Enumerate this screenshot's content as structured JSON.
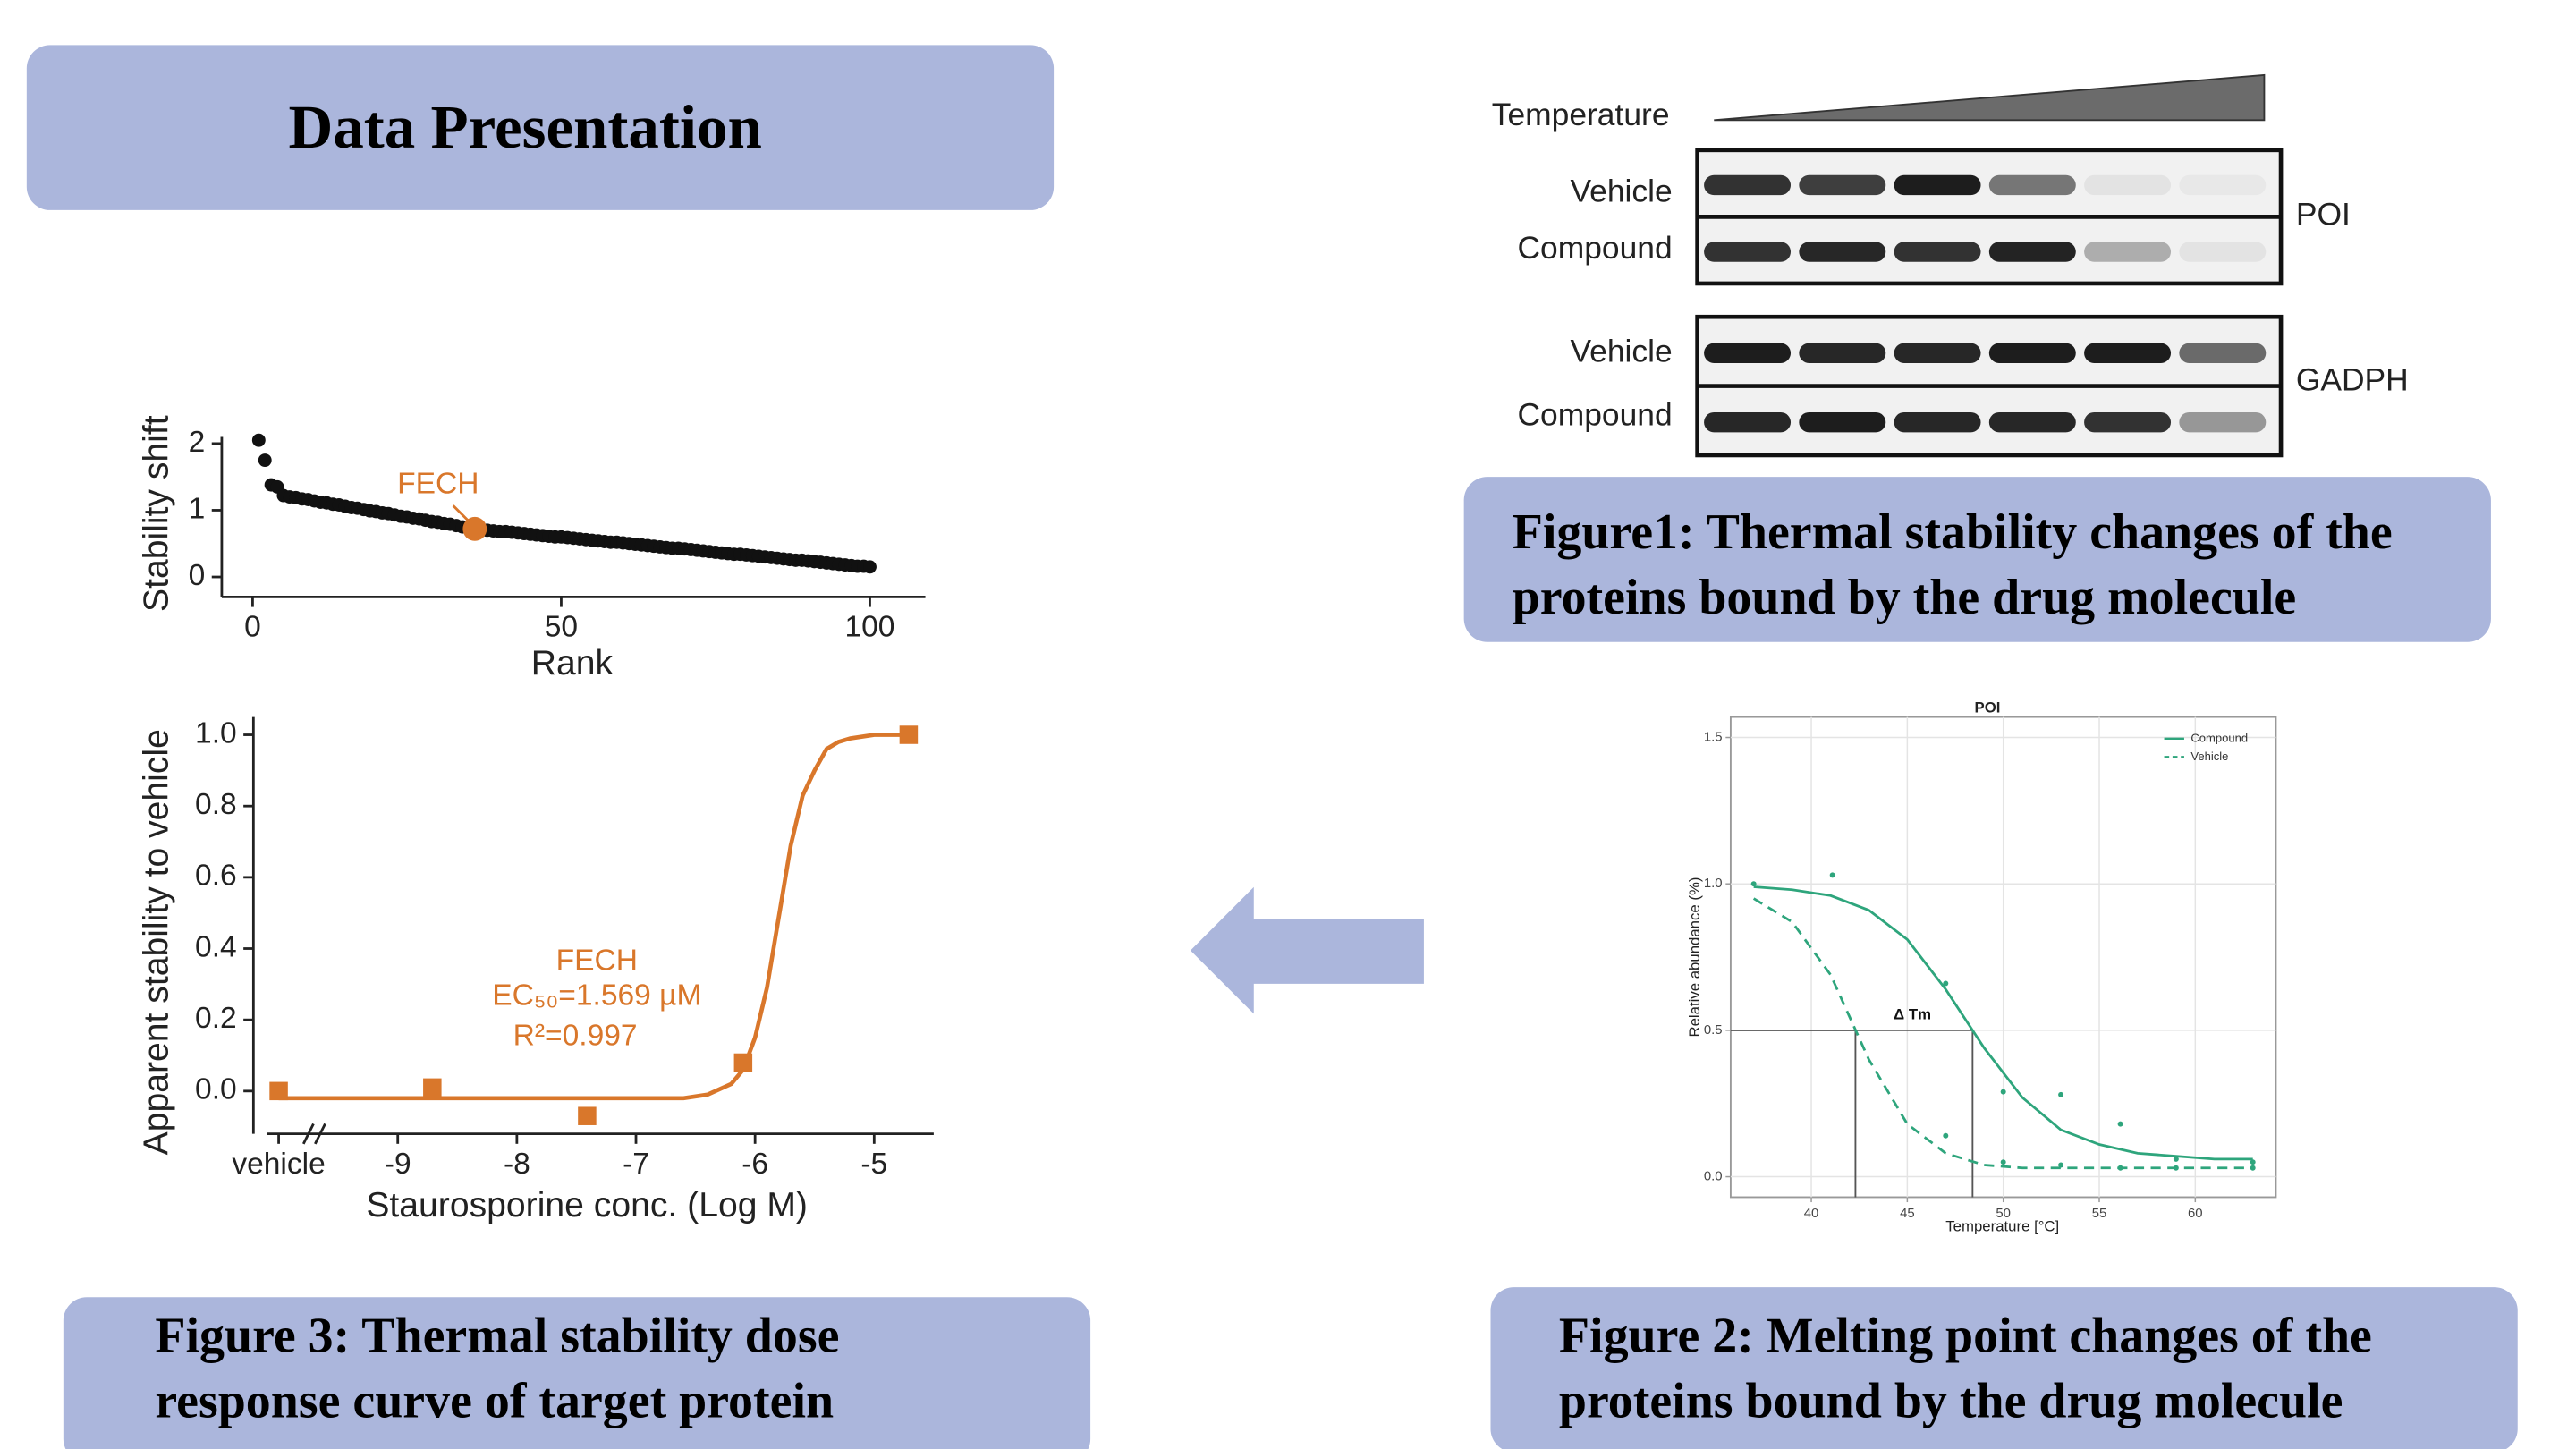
{
  "header": {
    "title": "Data Presentation"
  },
  "captions": [
    {
      "lines": [
        "Figure1: Thermal stability changes of the",
        "proteins bound by the drug molecule"
      ]
    },
    {
      "lines": [
        "Figure 2: Melting point changes of the",
        "proteins bound by the drug molecule"
      ]
    },
    {
      "lines": [
        "Figure 3: Thermal stability dose",
        "response curve of target protein"
      ]
    }
  ],
  "blot": {
    "gradient_label": "Temperature",
    "panels": [
      {
        "name": "POI",
        "rows": [
          "Vehicle",
          "Compound"
        ]
      },
      {
        "name": "GADPH",
        "rows": [
          "Vehicle",
          "Compound"
        ]
      }
    ]
  },
  "chart_data": [
    {
      "type": "scatter",
      "xlabel": "Rank",
      "ylabel": "Stability shift",
      "xlim": [
        -5,
        109
      ],
      "ylim": [
        -0.3,
        2.1
      ],
      "xticks": [
        0,
        50,
        100
      ],
      "yticks": [
        0,
        1,
        2
      ],
      "series": [
        {
          "color": "#111111",
          "mode": "markers",
          "x": [
            1,
            2,
            3,
            4,
            5,
            6,
            7,
            8,
            9,
            10,
            11,
            12,
            13,
            14,
            15,
            16,
            17,
            18,
            19,
            20,
            21,
            22,
            23,
            24,
            25,
            26,
            27,
            28,
            29,
            30,
            31,
            32,
            33,
            34,
            35,
            36,
            37,
            38,
            39,
            40,
            41,
            42,
            43,
            44,
            45,
            46,
            47,
            48,
            49,
            50,
            51,
            52,
            53,
            54,
            55,
            56,
            57,
            58,
            59,
            60,
            61,
            62,
            63,
            64,
            65,
            66,
            67,
            68,
            69,
            70,
            71,
            72,
            73,
            74,
            75,
            76,
            77,
            78,
            79,
            80,
            81,
            82,
            83,
            84,
            85,
            86,
            87,
            88,
            89,
            90,
            91,
            92,
            93,
            94,
            95,
            96,
            97,
            98,
            99,
            100
          ],
          "values": [
            2.05,
            1.75,
            1.38,
            1.35,
            1.22,
            1.2,
            1.19,
            1.17,
            1.16,
            1.14,
            1.12,
            1.11,
            1.09,
            1.08,
            1.06,
            1.04,
            1.03,
            1.01,
            0.99,
            0.98,
            0.96,
            0.95,
            0.93,
            0.91,
            0.9,
            0.88,
            0.87,
            0.85,
            0.83,
            0.82,
            0.8,
            0.79,
            0.77,
            0.75,
            0.74,
            0.72,
            0.71,
            0.7,
            0.69,
            0.68,
            0.68,
            0.67,
            0.66,
            0.65,
            0.64,
            0.63,
            0.62,
            0.61,
            0.6,
            0.6,
            0.59,
            0.58,
            0.57,
            0.56,
            0.55,
            0.54,
            0.53,
            0.52,
            0.52,
            0.51,
            0.5,
            0.49,
            0.48,
            0.47,
            0.46,
            0.45,
            0.44,
            0.43,
            0.43,
            0.42,
            0.41,
            0.4,
            0.39,
            0.38,
            0.37,
            0.36,
            0.35,
            0.34,
            0.34,
            0.33,
            0.32,
            0.31,
            0.3,
            0.29,
            0.28,
            0.27,
            0.26,
            0.25,
            0.25,
            0.24,
            0.23,
            0.22,
            0.21,
            0.2,
            0.19,
            0.18,
            0.17,
            0.16,
            0.16,
            0.15
          ]
        },
        {
          "name": "FECH",
          "color": "#d9772b",
          "mode": "markers",
          "x": [
            36
          ],
          "values": [
            0.72
          ]
        }
      ]
    },
    {
      "type": "line",
      "xlabel": "Staurosporine conc. (Log M)",
      "ylabel": "Apparent stability to vehicle",
      "xlim": [
        -10.1,
        -4.5
      ],
      "ylim": [
        -0.12,
        1.05
      ],
      "xticks": [
        {
          "value": -10,
          "label": "vehicle"
        },
        -9,
        -8,
        -7,
        -6,
        -5
      ],
      "yticks": [
        {
          "value": 0,
          "label": "0.0"
        },
        0.2,
        0.4,
        0.6,
        0.8,
        {
          "value": 1,
          "label": "1.0"
        }
      ],
      "axis_break": true,
      "annotations": [
        "FECH",
        "EC₅₀=1.569 µM",
        "R²=0.997"
      ],
      "annotation_color": "#d9772b",
      "series": [
        {
          "color": "#d9772b",
          "mode": "line",
          "x": [
            -10,
            -9,
            -8,
            -7,
            -6.6,
            -6.4,
            -6.2,
            -6.1,
            -6.0,
            -5.9,
            -5.8,
            -5.7,
            -5.6,
            -5.5,
            -5.4,
            -5.3,
            -5.2,
            -5.0,
            -4.7
          ],
          "values": [
            -0.02,
            -0.02,
            -0.02,
            -0.02,
            -0.02,
            -0.01,
            0.02,
            0.06,
            0.15,
            0.29,
            0.49,
            0.69,
            0.83,
            0.9,
            0.96,
            0.98,
            0.99,
            1.0,
            1.0
          ]
        },
        {
          "color": "#d9772b",
          "mode": "markers",
          "marker": "square",
          "x": [
            -10,
            -8.71,
            -7.41,
            -6.1,
            -4.71
          ],
          "values": [
            0.0,
            0.01,
            -0.07,
            0.08,
            1.0
          ]
        }
      ]
    },
    {
      "type": "line",
      "title": "POI",
      "xlabel": "Temperature [°C]",
      "ylabel": "Relative abundance (%)",
      "xlim": [
        35.8,
        64.2
      ],
      "ylim": [
        -0.07,
        1.57
      ],
      "xticks": [
        40,
        45,
        50,
        55,
        60
      ],
      "yticks": [
        {
          "value": 0,
          "label": "0.0"
        },
        0.5,
        {
          "value": 1,
          "label": "1.0"
        },
        1.5
      ],
      "grid": true,
      "frame": true,
      "legend": "top-right",
      "annotations": [
        "Δ Tm"
      ],
      "annotation_color": "#111111",
      "reference_lines": [
        {
          "x": 42.3,
          "y": 0.5
        },
        {
          "x": 48.4,
          "y": 0.5
        }
      ],
      "series": [
        {
          "name": "Compound",
          "color": "#2ea57c",
          "mode": "line",
          "x": [
            37,
            39,
            41,
            43,
            45,
            47,
            49,
            51,
            53,
            55,
            57,
            59,
            61,
            63
          ],
          "values": [
            0.99,
            0.98,
            0.96,
            0.91,
            0.81,
            0.64,
            0.44,
            0.27,
            0.16,
            0.11,
            0.08,
            0.07,
            0.06,
            0.06
          ]
        },
        {
          "name": "Vehicle",
          "color": "#2ea57c",
          "mode": "line",
          "dash": true,
          "x": [
            37,
            39,
            41,
            43,
            45,
            47,
            49,
            51,
            53,
            55,
            57,
            59,
            61,
            63
          ],
          "values": [
            0.95,
            0.87,
            0.69,
            0.4,
            0.18,
            0.08,
            0.04,
            0.03,
            0.03,
            0.03,
            0.03,
            0.03,
            0.03,
            0.03
          ]
        },
        {
          "color": "#2ea57c",
          "mode": "markers",
          "x": [
            37,
            41.1,
            47,
            50,
            53,
            56.1,
            59,
            63
          ],
          "values": [
            1.0,
            1.03,
            0.66,
            0.29,
            0.28,
            0.18,
            0.06,
            0.05
          ]
        },
        {
          "color": "#2ea57c",
          "mode": "markers",
          "x": [
            47,
            50,
            53,
            56.1,
            59,
            63
          ],
          "values": [
            0.14,
            0.05,
            0.04,
            0.03,
            0.03,
            0.03
          ]
        }
      ]
    }
  ]
}
